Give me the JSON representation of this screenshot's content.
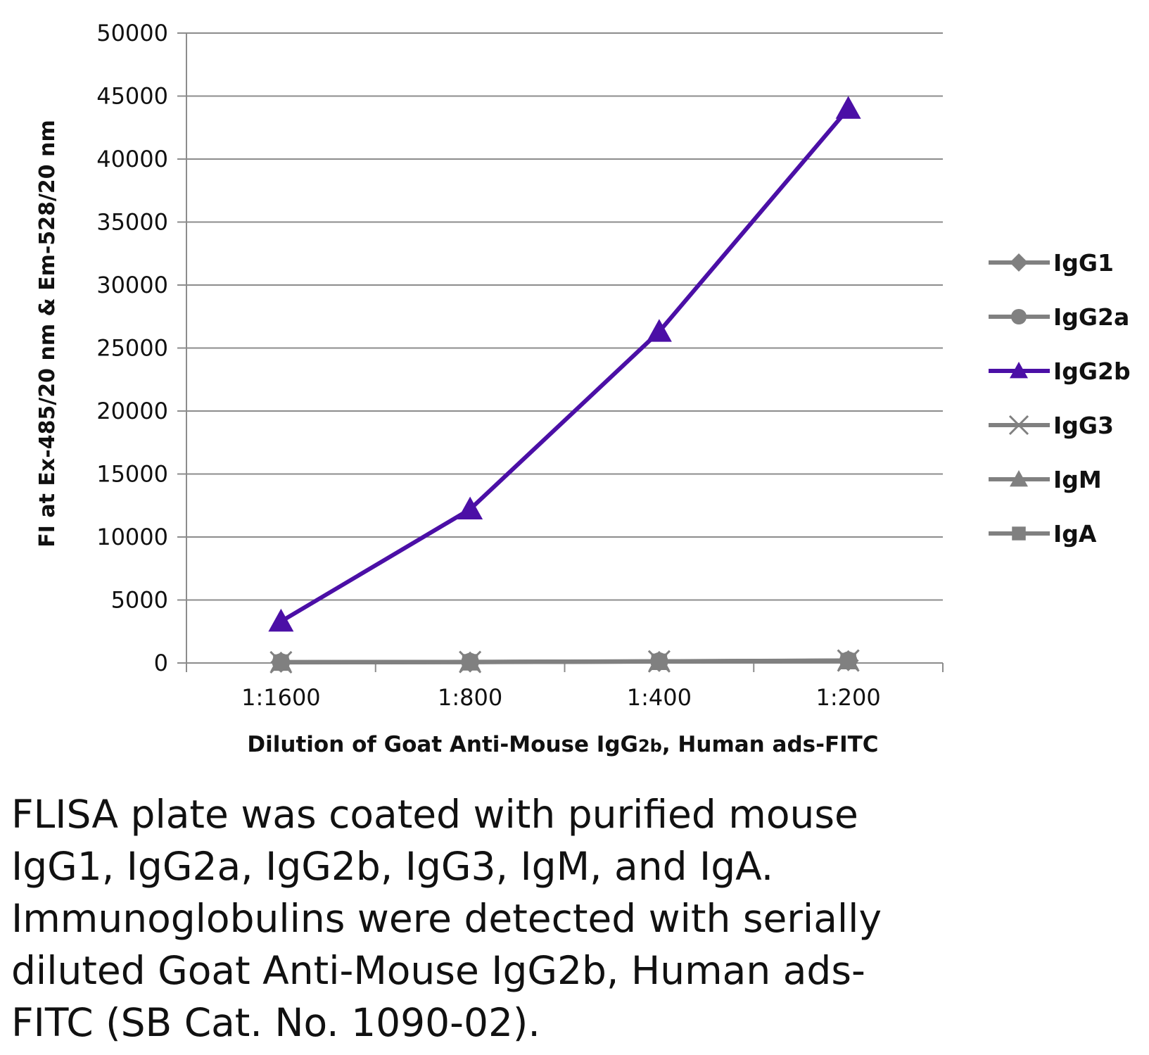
{
  "chart_data": {
    "type": "line",
    "categories": [
      "1:1600",
      "1:800",
      "1:400",
      "1:200"
    ],
    "ylim": [
      0,
      50000
    ],
    "yticks": [
      "0",
      "5000",
      "10000",
      "15000",
      "20000",
      "25000",
      "30000",
      "35000",
      "40000",
      "45000",
      "50000"
    ],
    "xlabel_parts": [
      "Dilution of Goat Anti-Mouse IgG",
      "2b",
      ", Human ads-FITC"
    ],
    "ylabel": "FI at Ex-485/20 nm & Em-528/20 nm",
    "grid": true,
    "legend_position": "right",
    "series": [
      {
        "name": "IgG1",
        "values": [
          60,
          80,
          120,
          180
        ],
        "color": "#808080",
        "marker": "diamond"
      },
      {
        "name": "IgG2a",
        "values": [
          60,
          90,
          130,
          200
        ],
        "color": "#808080",
        "marker": "circle"
      },
      {
        "name": "IgG2b",
        "values": [
          3300,
          12200,
          26300,
          44000
        ],
        "color": "#4b0fa6",
        "marker": "triangle"
      },
      {
        "name": "IgG3",
        "values": [
          60,
          80,
          130,
          190
        ],
        "color": "#808080",
        "marker": "x"
      },
      {
        "name": "IgM",
        "values": [
          50,
          70,
          110,
          170
        ],
        "color": "#808080",
        "marker": "triangle"
      },
      {
        "name": "IgA",
        "values": [
          60,
          80,
          120,
          180
        ],
        "color": "#808080",
        "marker": "square"
      }
    ]
  },
  "caption": {
    "lines": [
      "FLISA plate was coated with purified mouse",
      "IgG1, IgG2a, IgG2b, IgG3, IgM, and IgA.",
      "Immunoglobulins were detected with serially",
      "diluted Goat Anti-Mouse IgG2b, Human ads-",
      "FITC (SB Cat. No. 1090-02)."
    ]
  }
}
